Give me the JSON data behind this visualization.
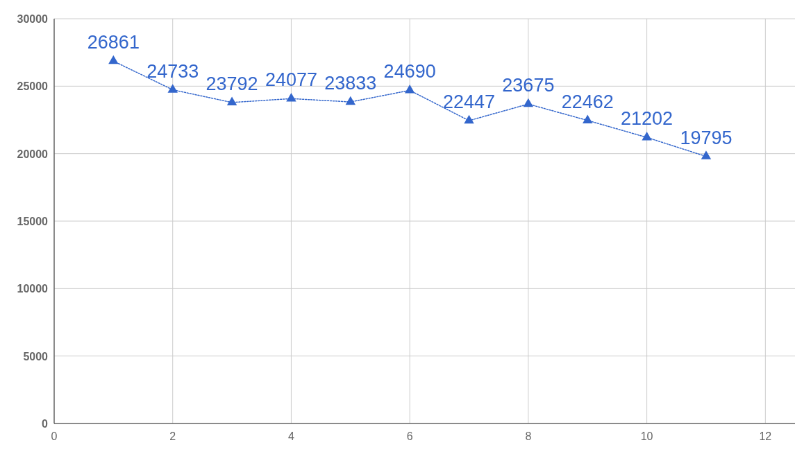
{
  "chart_data": {
    "type": "line",
    "x": [
      1,
      2,
      3,
      4,
      5,
      6,
      7,
      8,
      9,
      10,
      11
    ],
    "series": [
      {
        "color": "#3366cc",
        "values": [
          26861,
          24733,
          23792,
          24077,
          23833,
          24690,
          22447,
          23675,
          22462,
          21202,
          19795
        ]
      }
    ],
    "xlim": [
      0,
      12.5
    ],
    "xticks": [
      0,
      2,
      4,
      6,
      8,
      10,
      12
    ],
    "ylim": [
      0,
      30000
    ],
    "yticks": [
      0,
      5000,
      10000,
      15000,
      20000,
      25000,
      30000
    ],
    "grid": true,
    "marker": "triangle",
    "line_style": "dotted",
    "data_labels": true
  }
}
